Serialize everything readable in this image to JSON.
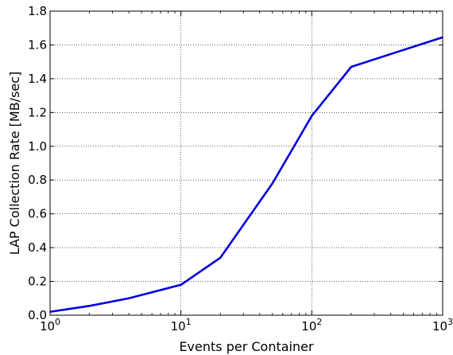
{
  "chart_data": {
    "type": "line",
    "title": "",
    "xlabel": "Events per Container",
    "ylabel": "LAP Collection Rate [MB/sec]",
    "xscale": "log",
    "xlim": [
      1,
      1000
    ],
    "ylim": [
      0.0,
      1.8
    ],
    "grid": true,
    "legend": "none",
    "line_color": "#0000dd",
    "x_ticks": [
      {
        "value": 1,
        "base": "10",
        "exp": "0"
      },
      {
        "value": 10,
        "base": "10",
        "exp": "1"
      },
      {
        "value": 100,
        "base": "10",
        "exp": "2"
      },
      {
        "value": 1000,
        "base": "10",
        "exp": "3"
      }
    ],
    "y_ticks": [
      {
        "value": 0.0,
        "label": "0.0"
      },
      {
        "value": 0.2,
        "label": "0.2"
      },
      {
        "value": 0.4,
        "label": "0.4"
      },
      {
        "value": 0.6,
        "label": "0.6"
      },
      {
        "value": 0.8,
        "label": "0.8"
      },
      {
        "value": 1.0,
        "label": "1.0"
      },
      {
        "value": 1.2,
        "label": "1.2"
      },
      {
        "value": 1.4,
        "label": "1.4"
      },
      {
        "value": 1.6,
        "label": "1.6"
      },
      {
        "value": 1.8,
        "label": "1.8"
      }
    ],
    "series": [
      {
        "x": [
          1,
          2,
          4,
          10,
          20,
          50,
          100,
          200,
          500,
          1000
        ],
        "y": [
          0.02,
          0.055,
          0.1,
          0.18,
          0.34,
          0.78,
          1.18,
          1.47,
          1.57,
          1.645
        ]
      }
    ]
  }
}
